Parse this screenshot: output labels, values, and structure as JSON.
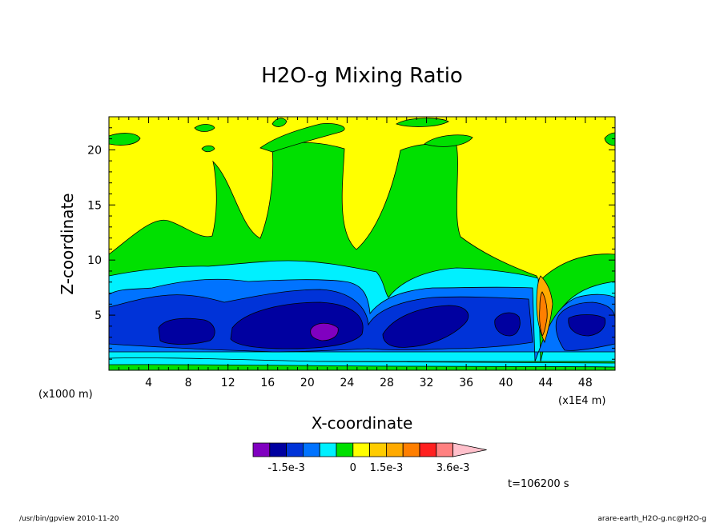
{
  "chart_data": {
    "type": "heatmap",
    "title": "H2O-g Mixing Ratio",
    "xlabel": "X-coordinate",
    "ylabel": "Z-coordinate",
    "x_scale_label": "(x1E4 m)",
    "y_scale_label": "(x1000 m)",
    "xlim": [
      0,
      51
    ],
    "ylim": [
      0,
      23
    ],
    "x_ticks": [
      4,
      8,
      12,
      16,
      20,
      24,
      28,
      32,
      36,
      40,
      44,
      48
    ],
    "y_ticks": [
      5,
      10,
      15,
      20
    ],
    "colorbar": {
      "colors": [
        "#8000c0",
        "#0000a0",
        "#0033d8",
        "#0073ff",
        "#00f0ff",
        "#00e000",
        "#ffff00",
        "#ffcc00",
        "#ffaa00",
        "#ff7f00",
        "#ff2020",
        "#ff8080",
        "#ffc0cb"
      ],
      "labels": [
        "-1.5e-3",
        "0",
        "1.5e-3",
        "3.6e-3"
      ]
    },
    "time_label": "t=106200 s",
    "footer_left": "/usr/bin/gpview   2010-11-20",
    "footer_right": "arare-earth_H2O-g.nc@H2O-g"
  }
}
